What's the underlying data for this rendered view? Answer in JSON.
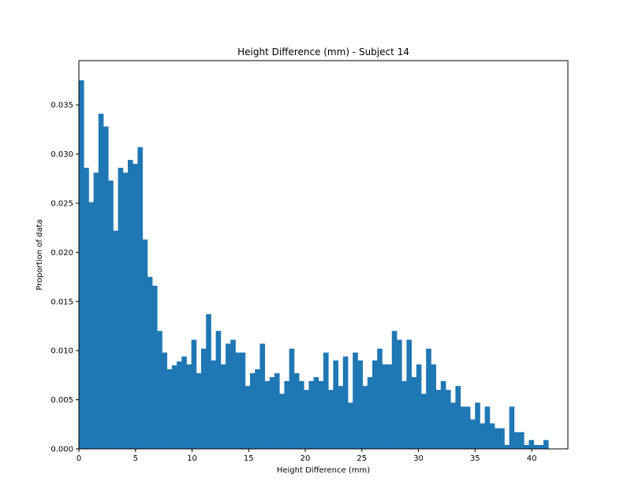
{
  "colors": {
    "bar": "#1f77b4",
    "axes": "#000000",
    "background": "#ffffff"
  },
  "chart_data": {
    "type": "bar",
    "title": "Height Difference (mm) - Subject 14",
    "xlabel": "Height Difference (mm)",
    "ylabel": "Proportion of data",
    "xlim": [
      0,
      43.2
    ],
    "ylim": [
      0,
      0.0395
    ],
    "grid": false,
    "legend": "none",
    "bin_start": 0,
    "bin_width": 0.432,
    "x_ticks": [
      0,
      5,
      10,
      15,
      20,
      25,
      30,
      35,
      40
    ],
    "x_tick_labels": [
      "0",
      "5",
      "10",
      "15",
      "20",
      "25",
      "30",
      "35",
      "40"
    ],
    "y_ticks": [
      0.0,
      0.005,
      0.01,
      0.015,
      0.02,
      0.025,
      0.03,
      0.035
    ],
    "y_tick_labels": [
      "0.000",
      "0.005",
      "0.010",
      "0.015",
      "0.020",
      "0.025",
      "0.030",
      "0.035"
    ],
    "values": [
      0.0375,
      0.0286,
      0.0251,
      0.0281,
      0.0341,
      0.0328,
      0.0273,
      0.0222,
      0.0286,
      0.0281,
      0.0294,
      0.029,
      0.0307,
      0.0213,
      0.0175,
      0.0166,
      0.012,
      0.0098,
      0.0081,
      0.0085,
      0.0089,
      0.0094,
      0.0086,
      0.0111,
      0.0077,
      0.0102,
      0.0137,
      0.009,
      0.012,
      0.0086,
      0.0107,
      0.0111,
      0.0098,
      0.0098,
      0.0064,
      0.0077,
      0.0081,
      0.0107,
      0.0069,
      0.0073,
      0.0077,
      0.0056,
      0.0069,
      0.0102,
      0.0077,
      0.0069,
      0.006,
      0.0069,
      0.0073,
      0.0069,
      0.0098,
      0.006,
      0.009,
      0.0064,
      0.0094,
      0.0047,
      0.0098,
      0.009,
      0.0064,
      0.0073,
      0.009,
      0.0102,
      0.0086,
      0.0086,
      0.012,
      0.0111,
      0.0069,
      0.0111,
      0.0073,
      0.0086,
      0.0056,
      0.0102,
      0.0086,
      0.006,
      0.0069,
      0.006,
      0.0047,
      0.0064,
      0.0043,
      0.0043,
      0.003,
      0.0047,
      0.0026,
      0.0043,
      0.0026,
      0.0021,
      0.0021,
      0.0004,
      0.0043,
      0.0017,
      0.0017,
      0.0004,
      0.0009,
      0.0004,
      0.0004,
      0.0009,
      0.0,
      0.0,
      0.0,
      0.0,
      0.0004
    ]
  }
}
